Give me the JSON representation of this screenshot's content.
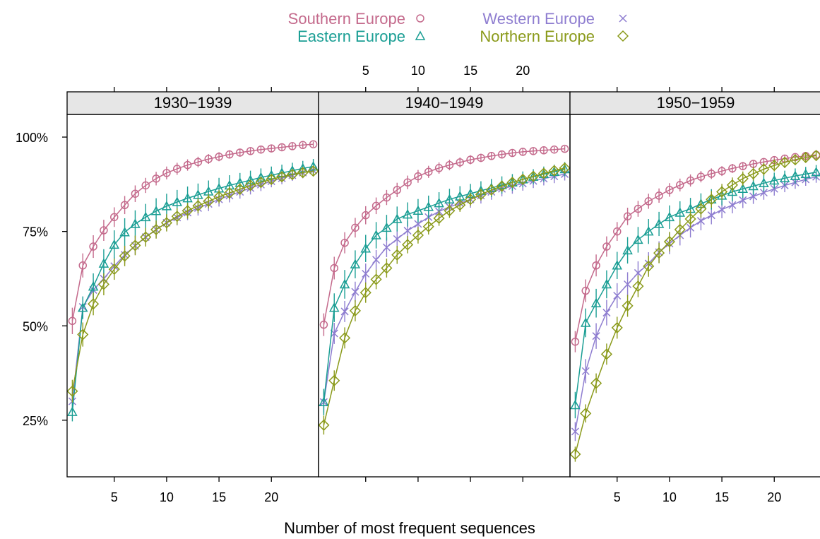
{
  "chart_data": {
    "type": "line",
    "xlabel": "Number of most frequent sequences",
    "ylabel": "",
    "xlim": [
      0.5,
      24.5
    ],
    "ylim": [
      10,
      106
    ],
    "x_ticks": [
      5,
      10,
      15,
      20
    ],
    "y_ticks": [
      {
        "value": 25,
        "label": "25%"
      },
      {
        "value": 50,
        "label": "50%"
      },
      {
        "value": 75,
        "label": "75%"
      },
      {
        "value": 100,
        "label": "100%"
      }
    ],
    "error_bars": true,
    "legend": {
      "position": "top",
      "entries": [
        {
          "name": "Southern Europe",
          "symbol": "circle",
          "color": "#C46A8C"
        },
        {
          "name": "Western Europe",
          "symbol": "cross",
          "color": "#8E7DD0"
        },
        {
          "name": "Eastern Europe",
          "symbol": "triangle",
          "color": "#1A9E94"
        },
        {
          "name": "Northern Europe",
          "symbol": "diamond",
          "color": "#8A9A1A"
        }
      ]
    },
    "x": [
      1,
      2,
      3,
      4,
      5,
      6,
      7,
      8,
      9,
      10,
      11,
      12,
      13,
      14,
      15,
      16,
      17,
      18,
      19,
      20,
      21,
      22,
      23,
      24
    ],
    "panels": [
      {
        "title": "1930−1939",
        "series": [
          {
            "name": "Southern Europe",
            "values": [
              51.3,
              66.0,
              71.0,
              75.3,
              78.8,
              82.0,
              85.0,
              87.2,
              89.0,
              90.5,
              91.6,
              92.6,
              93.4,
              94.2,
              94.8,
              95.4,
              95.9,
              96.3,
              96.7,
              97.0,
              97.3,
              97.6,
              97.9,
              98.1
            ],
            "err": [
              3.5,
              3.2,
              3.0,
              2.8,
              2.6,
              2.4,
              2.2,
              2.0,
              1.8,
              1.7,
              1.6,
              1.5,
              1.4,
              1.3,
              1.2,
              1.1,
              1.0,
              1.0,
              0.9,
              0.9,
              0.8,
              0.8,
              0.7,
              0.7
            ]
          },
          {
            "name": "Western Europe",
            "values": [
              30.0,
              55.0,
              59.5,
              62.5,
              65.8,
              68.8,
              71.2,
              73.5,
              75.5,
              77.3,
              78.7,
              80.0,
              81.2,
              82.3,
              83.5,
              84.5,
              85.5,
              86.5,
              87.4,
              88.3,
              89.1,
              89.9,
              90.6,
              91.2
            ],
            "err": [
              2.5,
              2.5,
              2.5,
              2.4,
              2.4,
              2.3,
              2.3,
              2.2,
              2.2,
              2.1,
              2.1,
              2.0,
              2.0,
              1.9,
              1.9,
              1.8,
              1.8,
              1.7,
              1.7,
              1.6,
              1.6,
              1.5,
              1.5,
              1.4
            ]
          },
          {
            "name": "Eastern Europe",
            "values": [
              27.2,
              54.8,
              60.4,
              66.5,
              71.5,
              74.8,
              77.0,
              78.8,
              80.4,
              81.7,
              82.8,
              83.8,
              84.7,
              85.6,
              86.4,
              87.2,
              87.9,
              88.6,
              89.3,
              89.9,
              90.5,
              91.1,
              91.7,
              92.2
            ],
            "err": [
              2.5,
              3.0,
              3.5,
              3.8,
              3.8,
              3.7,
              3.6,
              3.5,
              3.4,
              3.3,
              3.2,
              3.1,
              3.0,
              2.9,
              2.8,
              2.7,
              2.6,
              2.5,
              2.4,
              2.3,
              2.2,
              2.1,
              2.0,
              2.0
            ]
          },
          {
            "name": "Northern Europe",
            "values": [
              32.7,
              47.7,
              55.8,
              61.0,
              65.0,
              68.5,
              71.3,
              73.5,
              75.5,
              77.3,
              79.0,
              80.5,
              81.8,
              83.0,
              84.2,
              85.2,
              86.2,
              87.2,
              88.0,
              88.8,
              89.5,
              90.1,
              90.6,
              91.0
            ],
            "err": [
              3.0,
              3.2,
              3.0,
              2.9,
              2.8,
              2.7,
              2.6,
              2.5,
              2.4,
              2.3,
              2.2,
              2.1,
              2.0,
              1.9,
              1.8,
              1.7,
              1.6,
              1.5,
              1.5,
              1.4,
              1.3,
              1.2,
              1.2,
              1.1
            ]
          }
        ]
      },
      {
        "title": "1940−1949",
        "series": [
          {
            "name": "Southern Europe",
            "values": [
              50.3,
              65.3,
              72.0,
              76.0,
              79.3,
              81.8,
              84.0,
              86.0,
              88.0,
              89.6,
              90.8,
              91.8,
              92.6,
              93.3,
              94.0,
              94.5,
              95.0,
              95.4,
              95.8,
              96.1,
              96.3,
              96.5,
              96.7,
              96.9
            ],
            "err": [
              3.0,
              3.0,
              2.8,
              2.6,
              2.4,
              2.2,
              2.0,
              1.9,
              1.8,
              1.7,
              1.6,
              1.5,
              1.4,
              1.3,
              1.2,
              1.1,
              1.0,
              1.0,
              0.9,
              0.9,
              0.8,
              0.8,
              0.7,
              0.7
            ]
          },
          {
            "name": "Western Europe",
            "values": [
              29.8,
              48.0,
              53.8,
              59.0,
              63.8,
              67.5,
              70.8,
              73.0,
              75.2,
              77.0,
              78.8,
              80.3,
              81.5,
              82.5,
              83.5,
              84.5,
              85.5,
              86.3,
              87.0,
              87.7,
              88.4,
              89.0,
              89.6,
              90.2
            ],
            "err": [
              2.8,
              2.8,
              2.8,
              2.7,
              2.7,
              2.6,
              2.6,
              2.5,
              2.5,
              2.4,
              2.4,
              2.3,
              2.3,
              2.2,
              2.2,
              2.1,
              2.1,
              2.0,
              2.0,
              1.9,
              1.9,
              1.8,
              1.8,
              1.7
            ]
          },
          {
            "name": "Eastern Europe",
            "values": [
              29.8,
              54.8,
              61.0,
              66.3,
              70.5,
              74.0,
              76.0,
              78.3,
              79.5,
              80.5,
              81.5,
              82.5,
              83.5,
              84.3,
              85.0,
              85.8,
              86.5,
              87.3,
              88.0,
              88.8,
              89.5,
              90.2,
              90.8,
              91.5
            ],
            "err": [
              3.5,
              3.8,
              3.8,
              3.7,
              3.6,
              3.5,
              3.4,
              3.3,
              3.2,
              3.1,
              3.0,
              2.9,
              2.8,
              2.7,
              2.6,
              2.5,
              2.4,
              2.3,
              2.2,
              2.1,
              2.0,
              2.0,
              1.9,
              1.9
            ]
          },
          {
            "name": "Northern Europe",
            "values": [
              23.7,
              35.5,
              46.8,
              54.0,
              58.8,
              62.3,
              65.3,
              68.8,
              71.5,
              74.0,
              76.3,
              78.5,
              80.5,
              82.0,
              83.5,
              84.8,
              86.0,
              87.0,
              88.0,
              88.8,
              89.6,
              90.4,
              91.1,
              91.8
            ],
            "err": [
              2.5,
              2.7,
              2.8,
              2.8,
              2.7,
              2.6,
              2.5,
              2.4,
              2.3,
              2.2,
              2.1,
              2.0,
              1.9,
              1.8,
              1.7,
              1.6,
              1.5,
              1.5,
              1.4,
              1.3,
              1.3,
              1.2,
              1.2,
              1.1
            ]
          }
        ]
      },
      {
        "title": "1950−1959",
        "series": [
          {
            "name": "Southern Europe",
            "values": [
              45.8,
              59.3,
              66.0,
              71.0,
              75.0,
              79.0,
              81.0,
              83.0,
              84.5,
              86.0,
              87.3,
              88.5,
              89.5,
              90.3,
              91.0,
              91.7,
              92.3,
              92.9,
              93.4,
              93.9,
              94.3,
              94.7,
              95.0,
              95.3
            ],
            "err": [
              2.8,
              3.0,
              2.9,
              2.7,
              2.5,
              2.3,
              2.1,
              2.0,
              1.9,
              1.8,
              1.7,
              1.6,
              1.5,
              1.4,
              1.3,
              1.2,
              1.1,
              1.0,
              1.0,
              0.9,
              0.9,
              0.8,
              0.8,
              0.7
            ]
          },
          {
            "name": "Western Europe",
            "values": [
              22.0,
              38.0,
              47.3,
              53.5,
              58.0,
              61.0,
              64.0,
              66.5,
              69.5,
              71.8,
              74.0,
              76.0,
              77.8,
              79.3,
              80.8,
              82.0,
              83.3,
              84.3,
              85.3,
              86.3,
              87.2,
              88.0,
              88.8,
              89.5
            ],
            "err": [
              2.5,
              3.2,
              3.4,
              3.4,
              3.3,
              3.2,
              3.1,
              3.0,
              2.9,
              2.8,
              2.7,
              2.6,
              2.5,
              2.4,
              2.3,
              2.2,
              2.1,
              2.0,
              1.9,
              1.8,
              1.8,
              1.7,
              1.7,
              1.6
            ]
          },
          {
            "name": "Eastern Europe",
            "values": [
              29.0,
              50.8,
              56.0,
              61.0,
              66.0,
              70.0,
              72.8,
              75.0,
              77.0,
              78.8,
              80.0,
              81.0,
              82.3,
              83.5,
              84.5,
              85.5,
              86.3,
              87.0,
              87.8,
              88.5,
              89.1,
              89.7,
              90.2,
              90.7
            ],
            "err": [
              3.5,
              3.8,
              3.8,
              3.7,
              3.6,
              3.5,
              3.4,
              3.3,
              3.2,
              3.1,
              3.0,
              2.9,
              2.8,
              2.7,
              2.6,
              2.5,
              2.4,
              2.3,
              2.2,
              2.1,
              2.0,
              2.0,
              1.9,
              1.9
            ]
          },
          {
            "name": "Northern Europe",
            "values": [
              16.0,
              26.8,
              34.8,
              42.5,
              49.5,
              55.3,
              60.5,
              65.8,
              69.3,
              72.3,
              75.5,
              78.3,
              81.0,
              83.5,
              85.5,
              87.3,
              89.0,
              90.3,
              91.5,
              92.5,
              93.3,
              94.0,
              94.6,
              95.1
            ],
            "err": [
              2.0,
              2.4,
              2.6,
              2.8,
              2.9,
              2.9,
              2.9,
              2.8,
              2.7,
              2.6,
              2.5,
              2.4,
              2.3,
              2.2,
              2.1,
              2.0,
              1.9,
              1.8,
              1.7,
              1.6,
              1.5,
              1.4,
              1.3,
              1.2
            ]
          }
        ]
      }
    ]
  }
}
